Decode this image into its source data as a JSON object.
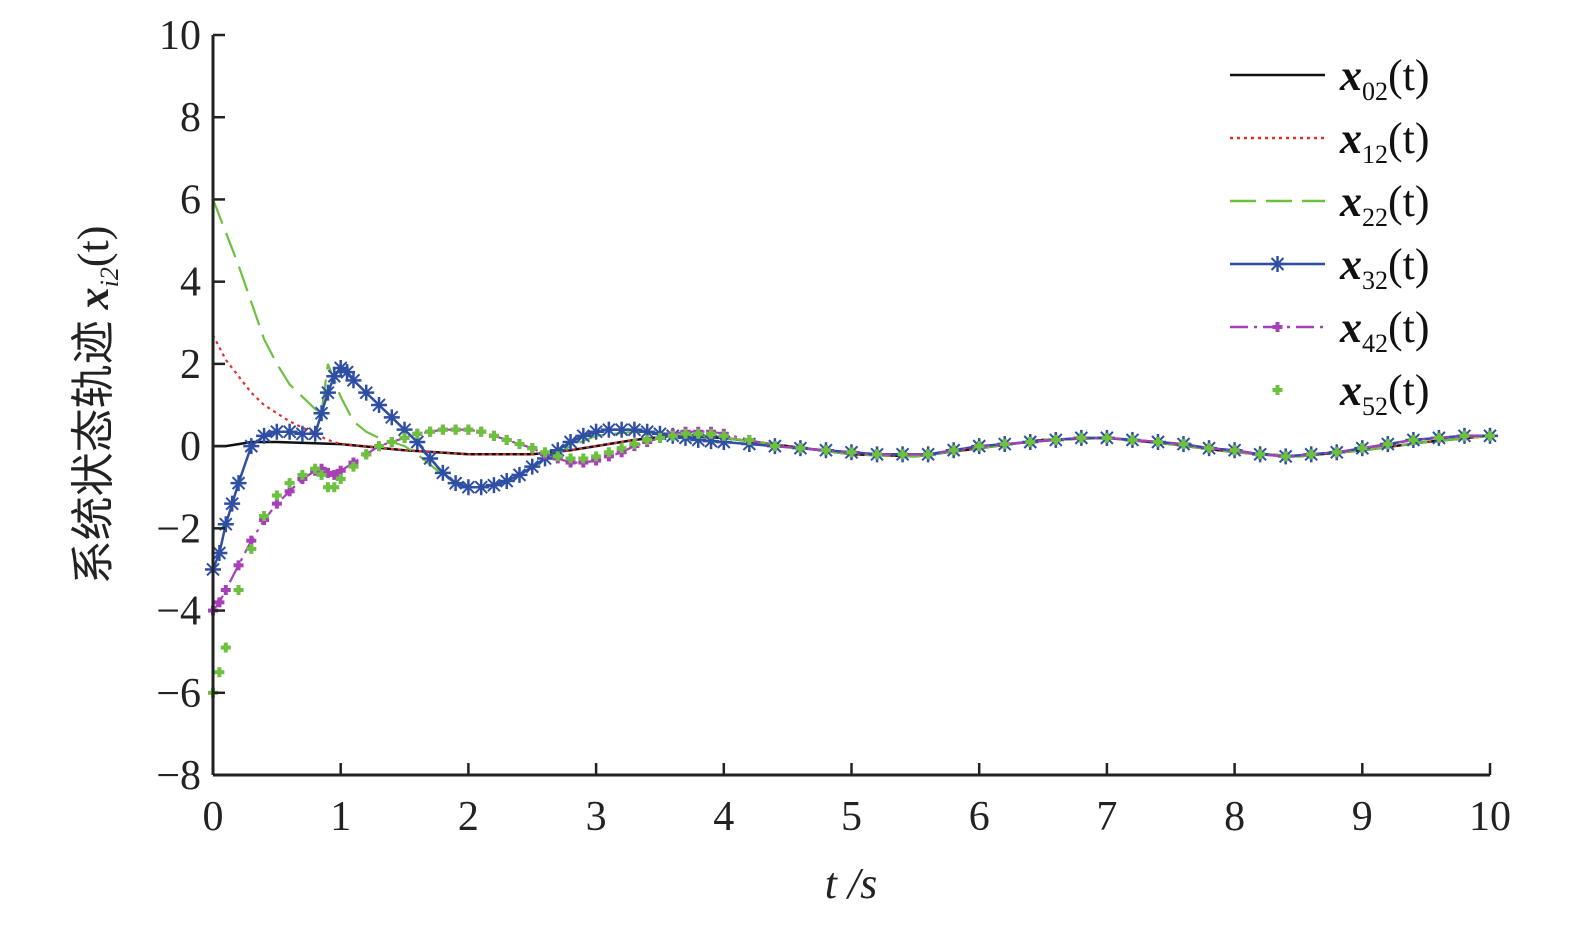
{
  "chart_data": {
    "type": "line",
    "xlabel": "t /s",
    "ylabel": "系统状态轨迹 x_i2(t)",
    "ylabel_prefix": "系统状态轨迹 ",
    "ylabel_var": "x",
    "ylabel_sub": "i2",
    "ylabel_arg": "(t)",
    "xlim": [
      0,
      10
    ],
    "ylim": [
      -8,
      10
    ],
    "xticks": [
      0,
      1,
      2,
      3,
      4,
      5,
      6,
      7,
      8,
      9,
      10
    ],
    "yticks": [
      -8,
      -6,
      -4,
      -2,
      0,
      2,
      4,
      6,
      8,
      10
    ],
    "xtick_labels": [
      "0",
      "1",
      "2",
      "3",
      "4",
      "5",
      "6",
      "7",
      "8",
      "9",
      "10"
    ],
    "ytick_labels": [
      "−8",
      "−6",
      "−4",
      "−2",
      "0",
      "2",
      "4",
      "6",
      "8",
      "10"
    ],
    "grid": false,
    "legend_position": "top-right",
    "series": [
      {
        "name": "x02(t)",
        "label_var": "x",
        "label_sub": "02",
        "label_arg": "(t)",
        "color": "#111111",
        "style": "solid",
        "marker": "none",
        "x": [
          0,
          0.1,
          0.2,
          0.3,
          0.5,
          1.0,
          1.5,
          2.0,
          2.5,
          2.8,
          3.0,
          3.3,
          3.6,
          4.0,
          4.5,
          5.0,
          5.5,
          6.0,
          6.5,
          7.0,
          7.5,
          8.0,
          8.5,
          9.0,
          9.5,
          10.0
        ],
        "y": [
          0,
          0,
          0.05,
          0.1,
          0.1,
          0.05,
          -0.1,
          -0.2,
          -0.2,
          -0.1,
          0,
          0.15,
          0.25,
          0.2,
          0,
          -0.2,
          -0.25,
          -0.05,
          0.15,
          0.2,
          0.05,
          -0.15,
          -0.25,
          -0.1,
          0.1,
          0.25
        ]
      },
      {
        "name": "x12(t)",
        "label_var": "x",
        "label_sub": "12",
        "label_arg": "(t)",
        "color": "#e03030",
        "style": "dotted",
        "marker": "none",
        "x": [
          0,
          0.05,
          0.1,
          0.2,
          0.3,
          0.4,
          0.5,
          0.6,
          0.7,
          0.8,
          0.9,
          1.0,
          1.2,
          1.5,
          2.0,
          2.5,
          2.8,
          3.0,
          3.3,
          3.6,
          4.0,
          4.5,
          5.0,
          5.5,
          6.0,
          6.5,
          7.0,
          7.5,
          8.0,
          8.5,
          9.0,
          9.5,
          10.0
        ],
        "y": [
          2.7,
          2.4,
          2.1,
          1.7,
          1.3,
          1.0,
          0.8,
          0.6,
          0.45,
          0.3,
          0.15,
          0.05,
          0.0,
          -0.1,
          -0.2,
          -0.2,
          -0.1,
          0,
          0.15,
          0.25,
          0.2,
          0,
          -0.2,
          -0.25,
          -0.05,
          0.15,
          0.2,
          0.05,
          -0.15,
          -0.25,
          -0.1,
          0.1,
          0.25
        ]
      },
      {
        "name": "x22(t)",
        "label_var": "x",
        "label_sub": "22",
        "label_arg": "(t)",
        "color": "#6cc13e",
        "style": "dashed",
        "marker": "none",
        "x": [
          0,
          0.05,
          0.1,
          0.2,
          0.3,
          0.4,
          0.5,
          0.6,
          0.7,
          0.8,
          0.85,
          0.9,
          0.95,
          1.0,
          1.05,
          1.1,
          1.2,
          1.3,
          1.4,
          1.5,
          1.6,
          1.7,
          1.8,
          1.9,
          2.0,
          2.1,
          2.2,
          2.4,
          2.6,
          2.8,
          3.0,
          3.3,
          3.6,
          4.0,
          4.5,
          5.0,
          5.5,
          6.0,
          6.5,
          7.0,
          7.5,
          8.0,
          8.5,
          9.0,
          9.5,
          10.0
        ],
        "y": [
          6.0,
          5.6,
          5.2,
          4.4,
          3.5,
          2.6,
          2.0,
          1.5,
          1.2,
          0.9,
          0.8,
          2.0,
          1.6,
          1.2,
          0.9,
          0.6,
          0.35,
          0.2,
          0.1,
          0.0,
          -0.2,
          -0.45,
          -0.7,
          -0.9,
          -1.0,
          -1.0,
          -0.95,
          -0.7,
          -0.35,
          0,
          0.25,
          0.35,
          0.3,
          0.2,
          0.0,
          -0.2,
          -0.25,
          -0.05,
          0.15,
          0.2,
          0.05,
          -0.15,
          -0.25,
          -0.1,
          0.1,
          0.25
        ]
      },
      {
        "name": "x32(t)",
        "label_var": "x",
        "label_sub": "32",
        "label_arg": "(t)",
        "color": "#2e4fa3",
        "style": "solid",
        "marker": "star",
        "x": [
          0,
          0.05,
          0.1,
          0.15,
          0.2,
          0.3,
          0.4,
          0.5,
          0.6,
          0.7,
          0.8,
          0.85,
          0.9,
          0.95,
          1.0,
          1.05,
          1.1,
          1.2,
          1.3,
          1.4,
          1.5,
          1.6,
          1.7,
          1.8,
          1.9,
          2.0,
          2.1,
          2.2,
          2.3,
          2.4,
          2.5,
          2.6,
          2.7,
          2.8,
          2.9,
          3.0,
          3.1,
          3.2,
          3.3,
          3.4,
          3.5,
          3.6,
          3.7,
          3.8,
          3.9,
          4.0,
          4.2,
          4.4,
          4.6,
          4.8,
          5.0,
          5.2,
          5.4,
          5.6,
          5.8,
          6.0,
          6.2,
          6.4,
          6.6,
          6.8,
          7.0,
          7.2,
          7.4,
          7.6,
          7.8,
          8.0,
          8.2,
          8.4,
          8.6,
          8.8,
          9.0,
          9.2,
          9.4,
          9.6,
          9.8,
          10.0
        ],
        "y": [
          -3.0,
          -2.6,
          -1.9,
          -1.4,
          -0.9,
          0.0,
          0.25,
          0.35,
          0.35,
          0.3,
          0.3,
          0.8,
          1.3,
          1.7,
          1.9,
          1.8,
          1.6,
          1.3,
          1.0,
          0.7,
          0.4,
          0.1,
          -0.3,
          -0.65,
          -0.9,
          -1.0,
          -1.0,
          -0.95,
          -0.85,
          -0.7,
          -0.5,
          -0.3,
          -0.1,
          0.1,
          0.25,
          0.35,
          0.4,
          0.4,
          0.4,
          0.35,
          0.3,
          0.25,
          0.2,
          0.15,
          0.12,
          0.1,
          0.05,
          0.0,
          -0.05,
          -0.1,
          -0.15,
          -0.2,
          -0.2,
          -0.2,
          -0.1,
          0.0,
          0.05,
          0.1,
          0.15,
          0.2,
          0.2,
          0.15,
          0.1,
          0.05,
          -0.05,
          -0.1,
          -0.2,
          -0.25,
          -0.2,
          -0.15,
          -0.05,
          0.05,
          0.15,
          0.2,
          0.25,
          0.25
        ]
      },
      {
        "name": "x42(t)",
        "label_var": "x",
        "label_sub": "42",
        "label_arg": "(t)",
        "color": "#a63fb8",
        "style": "dashdot",
        "marker": "plus",
        "x": [
          0,
          0.05,
          0.1,
          0.2,
          0.3,
          0.4,
          0.5,
          0.6,
          0.7,
          0.8,
          0.85,
          0.9,
          0.95,
          1.0,
          1.1,
          1.2,
          1.3,
          1.4,
          1.5,
          1.6,
          1.7,
          1.8,
          1.9,
          2.0,
          2.1,
          2.2,
          2.3,
          2.4,
          2.5,
          2.6,
          2.7,
          2.8,
          2.9,
          3.0,
          3.1,
          3.2,
          3.3,
          3.4,
          3.5,
          3.6,
          3.7,
          3.8,
          3.9,
          4.0,
          4.2,
          4.4,
          4.6,
          4.8,
          5.0,
          5.2,
          5.4,
          5.6,
          5.8,
          6.0,
          6.2,
          6.4,
          6.6,
          6.8,
          7.0,
          7.2,
          7.4,
          7.6,
          7.8,
          8.0,
          8.2,
          8.4,
          8.6,
          8.8,
          9.0,
          9.2,
          9.4,
          9.6,
          9.8,
          10.0
        ],
        "y": [
          -4.0,
          -3.8,
          -3.5,
          -2.9,
          -2.3,
          -1.8,
          -1.4,
          -1.1,
          -0.8,
          -0.6,
          -0.55,
          -0.65,
          -0.7,
          -0.6,
          -0.4,
          -0.2,
          0.0,
          0.1,
          0.2,
          0.3,
          0.35,
          0.4,
          0.4,
          0.4,
          0.35,
          0.25,
          0.15,
          0.05,
          -0.05,
          -0.2,
          -0.3,
          -0.4,
          -0.4,
          -0.35,
          -0.25,
          -0.15,
          0.0,
          0.1,
          0.2,
          0.3,
          0.35,
          0.35,
          0.35,
          0.3,
          0.15,
          0.0,
          -0.05,
          -0.1,
          -0.15,
          -0.2,
          -0.2,
          -0.2,
          -0.1,
          0.0,
          0.05,
          0.1,
          0.15,
          0.2,
          0.2,
          0.15,
          0.1,
          0.05,
          -0.05,
          -0.1,
          -0.2,
          -0.25,
          -0.2,
          -0.15,
          -0.05,
          0.05,
          0.15,
          0.2,
          0.25,
          0.25
        ]
      },
      {
        "name": "x52(t)",
        "label_var": "x",
        "label_sub": "52",
        "label_arg": "(t)",
        "color": "#6cc13e",
        "style": "none",
        "marker": "plus",
        "x": [
          0,
          0.05,
          0.1,
          0.2,
          0.3,
          0.4,
          0.5,
          0.6,
          0.7,
          0.8,
          0.85,
          0.9,
          0.95,
          1.0,
          1.1,
          1.2,
          1.3,
          1.4,
          1.5,
          1.6,
          1.7,
          1.8,
          1.9,
          2.0,
          2.1,
          2.2,
          2.3,
          2.4,
          2.5,
          2.6,
          2.7,
          2.8,
          2.9,
          3.0,
          3.1,
          3.2,
          3.3,
          3.4,
          3.5,
          3.6,
          3.7,
          3.8,
          3.9,
          4.0,
          4.2,
          4.4,
          4.6,
          4.8,
          5.0,
          5.2,
          5.4,
          5.6,
          5.8,
          6.0,
          6.2,
          6.4,
          6.6,
          6.8,
          7.0,
          7.2,
          7.4,
          7.6,
          7.8,
          8.0,
          8.2,
          8.4,
          8.6,
          8.8,
          9.0,
          9.2,
          9.4,
          9.6,
          9.8,
          10.0
        ],
        "y": [
          -6.0,
          -5.5,
          -4.9,
          -3.5,
          -2.5,
          -1.7,
          -1.2,
          -0.9,
          -0.7,
          -0.55,
          -0.7,
          -1.0,
          -1.0,
          -0.8,
          -0.5,
          -0.2,
          0.0,
          0.1,
          0.2,
          0.3,
          0.35,
          0.4,
          0.4,
          0.4,
          0.35,
          0.25,
          0.15,
          0.05,
          -0.05,
          -0.15,
          -0.25,
          -0.3,
          -0.3,
          -0.25,
          -0.15,
          -0.05,
          0.05,
          0.15,
          0.2,
          0.25,
          0.3,
          0.3,
          0.3,
          0.25,
          0.15,
          0.0,
          -0.05,
          -0.1,
          -0.15,
          -0.2,
          -0.2,
          -0.2,
          -0.1,
          0.0,
          0.05,
          0.1,
          0.15,
          0.2,
          0.2,
          0.15,
          0.1,
          0.05,
          -0.05,
          -0.1,
          -0.2,
          -0.25,
          -0.2,
          -0.15,
          -0.05,
          0.05,
          0.15,
          0.2,
          0.25,
          0.25
        ]
      }
    ]
  }
}
